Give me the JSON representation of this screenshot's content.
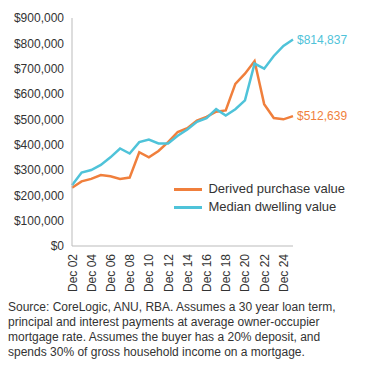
{
  "chart_data": {
    "type": "line",
    "categories": [
      "Dec 02",
      null,
      "Dec 04",
      null,
      "Dec 06",
      null,
      "Dec 08",
      null,
      "Dec 10",
      null,
      "Dec 12",
      null,
      "Dec 14",
      null,
      "Dec 16",
      null,
      "Dec 18",
      null,
      "Dec 20",
      null,
      "Dec 22",
      null,
      "Dec 24",
      null
    ],
    "series": [
      {
        "name": "Derived purchase value",
        "color": "#f07f3c",
        "values": [
          230000,
          255000,
          265000,
          280000,
          275000,
          265000,
          270000,
          370000,
          350000,
          375000,
          410000,
          450000,
          465000,
          495000,
          510000,
          530000,
          535000,
          640000,
          680000,
          730000,
          560000,
          505000,
          500000,
          512639
        ],
        "value_labels": [
          null,
          null,
          null,
          null,
          null,
          null,
          null,
          null,
          null,
          null,
          null,
          null,
          null,
          null,
          null,
          null,
          null,
          null,
          null,
          null,
          null,
          null,
          null,
          "$512,639"
        ]
      },
      {
        "name": "Median dwelling value",
        "color": "#4fc3d9",
        "values": [
          240000,
          290000,
          300000,
          320000,
          350000,
          385000,
          365000,
          410000,
          420000,
          405000,
          405000,
          435000,
          460000,
          490000,
          505000,
          540000,
          515000,
          540000,
          575000,
          720000,
          700000,
          750000,
          790000,
          814837
        ],
        "value_labels": [
          null,
          null,
          null,
          null,
          null,
          null,
          null,
          null,
          null,
          null,
          null,
          null,
          null,
          null,
          null,
          null,
          null,
          null,
          null,
          null,
          null,
          null,
          null,
          "$814,837"
        ]
      }
    ],
    "ylim": [
      0,
      900000
    ],
    "yticks": [
      {
        "value": 0,
        "label": "$0"
      },
      {
        "value": 100000,
        "label": "$100,000"
      },
      {
        "value": 200000,
        "label": "$200,000"
      },
      {
        "value": 300000,
        "label": "$300,000"
      },
      {
        "value": 400000,
        "label": "$400,000"
      },
      {
        "value": 500000,
        "label": "$500,000"
      },
      {
        "value": 600000,
        "label": "$600,000"
      },
      {
        "value": 700000,
        "label": "$700,000"
      },
      {
        "value": 800000,
        "label": "$800,000"
      },
      {
        "value": 900000,
        "label": "$900,000"
      }
    ],
    "grid": false,
    "legend": "lower right",
    "footnote": "Source: CoreLogic, ANU, RBA. Assumes a 30 year loan term, principal and interest payments at average owner-occupier mortgage rate. Assumes the buyer has a 20% deposit, and spends 30% of gross household income on a mortgage."
  }
}
